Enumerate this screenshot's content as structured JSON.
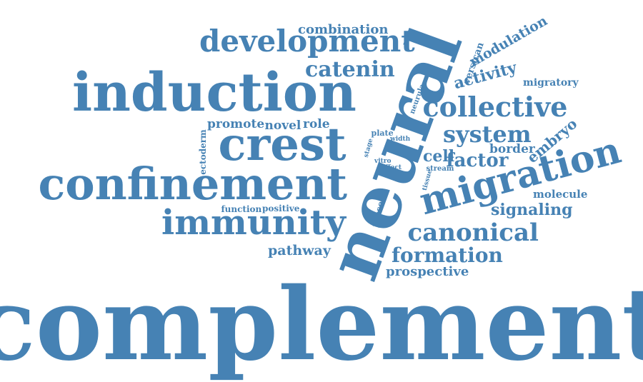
{
  "accent_color": "#4682b4",
  "words": {
    "complement": "complement",
    "neural": "neural",
    "induction": "induction",
    "crest": "crest",
    "confinement": "confinement",
    "migration": "migration",
    "immunity": "immunity",
    "development": "development",
    "collective": "collective",
    "system": "system",
    "catenin": "catenin",
    "canonical": "canonical",
    "formation": "formation",
    "combination": "combination",
    "modulation": "modulation",
    "factor": "factor",
    "cell": "cell",
    "signaling": "signaling",
    "activity": "activity",
    "border": "border",
    "embryo": "embryo",
    "prospective": "prospective",
    "pathway": "pathway",
    "molecule": "molecule",
    "promote": "promote",
    "novel": "novel",
    "role": "role",
    "migratory": "migratory",
    "versican": "versican",
    "ectoderm": "ectoderm",
    "function": "function",
    "positive": "positive",
    "present": "present",
    "neurula": "neurula",
    "plate": "plate",
    "width": "width",
    "stage": "stage",
    "vitro": "vitro",
    "affect": "affect",
    "stream": "stream",
    "tissue": "tissue"
  }
}
